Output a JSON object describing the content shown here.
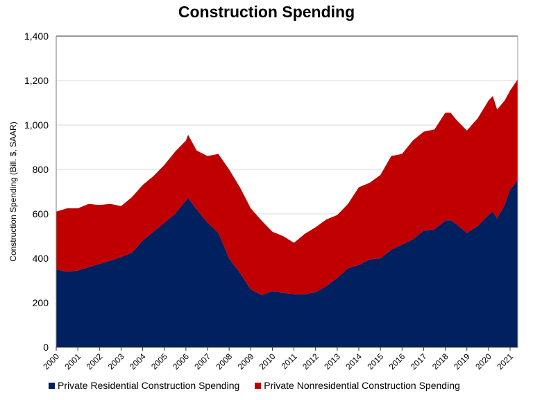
{
  "chart_data": {
    "type": "area",
    "stacked": true,
    "title": "Construction Spending",
    "xlabel": "",
    "ylabel": "Construction Spending (Bill. $, SAAR)",
    "xlim": [
      2000,
      2021.35
    ],
    "ylim": [
      0,
      1400
    ],
    "yticks": [
      0,
      200,
      400,
      600,
      800,
      1000,
      1200,
      1400
    ],
    "ytick_labels": [
      "0",
      "200",
      "400",
      "600",
      "800",
      "1,000",
      "1,200",
      "1,400"
    ],
    "xticks": [
      2000,
      2001,
      2002,
      2003,
      2004,
      2005,
      2006,
      2007,
      2008,
      2009,
      2010,
      2011,
      2012,
      2013,
      2014,
      2015,
      2016,
      2017,
      2018,
      2019,
      2020,
      2021
    ],
    "xtick_labels": [
      "2000",
      "2001",
      "2002",
      "2003",
      "2004",
      "2005",
      "2006",
      "2007",
      "2008",
      "2009",
      "2010",
      "2011",
      "2012",
      "2013",
      "2014",
      "2015",
      "2016",
      "2017",
      "2018",
      "2019",
      "2020",
      "2021"
    ],
    "grid": "horizontal",
    "legend_position": "bottom",
    "x": [
      2000.0,
      2000.5,
      2001.0,
      2001.5,
      2002.0,
      2002.5,
      2003.0,
      2003.5,
      2004.0,
      2004.5,
      2005.0,
      2005.5,
      2006.0,
      2006.1,
      2006.5,
      2007.0,
      2007.5,
      2008.0,
      2008.5,
      2009.0,
      2009.5,
      2010.0,
      2010.5,
      2011.0,
      2011.5,
      2012.0,
      2012.5,
      2013.0,
      2013.5,
      2014.0,
      2014.5,
      2015.0,
      2015.5,
      2016.0,
      2016.5,
      2017.0,
      2017.5,
      2018.0,
      2018.25,
      2018.5,
      2019.0,
      2019.5,
      2020.0,
      2020.2,
      2020.4,
      2020.75,
      2021.0,
      2021.35
    ],
    "series": [
      {
        "name": "Private Residential Construction Spending",
        "color": "#002060",
        "values": [
          350,
          340,
          345,
          360,
          375,
          390,
          405,
          425,
          480,
          520,
          560,
          600,
          660,
          672,
          620,
          560,
          515,
          400,
          335,
          260,
          235,
          252,
          245,
          238,
          238,
          248,
          275,
          312,
          355,
          370,
          395,
          400,
          438,
          462,
          485,
          525,
          530,
          570,
          572,
          555,
          515,
          545,
          595,
          610,
          580,
          640,
          710,
          750
        ]
      },
      {
        "name": "Private Nonresidential Construction Spending",
        "color": "#C00000",
        "values": [
          260,
          285,
          280,
          285,
          265,
          255,
          230,
          250,
          250,
          250,
          260,
          280,
          270,
          284,
          265,
          300,
          355,
          400,
          385,
          365,
          335,
          268,
          255,
          232,
          272,
          292,
          300,
          283,
          290,
          350,
          345,
          375,
          422,
          408,
          445,
          445,
          450,
          485,
          483,
          470,
          460,
          485,
          515,
          520,
          490,
          470,
          445,
          455
        ]
      }
    ]
  },
  "legend": {
    "items": [
      {
        "label": "Private Residential Construction Spending",
        "color": "#002060"
      },
      {
        "label": "Private Nonresidential Construction Spending",
        "color": "#C00000"
      }
    ]
  }
}
